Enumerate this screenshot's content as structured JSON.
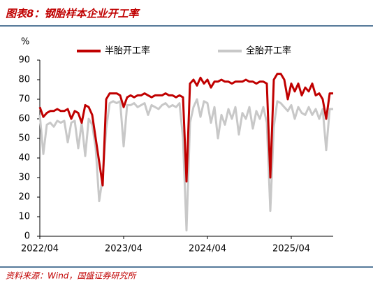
{
  "chart_data": {
    "type": "line",
    "title": "图表8：钢胎样本企业开工率",
    "y_label": "%",
    "source": "资料来源：Wind，国盛证券研究所",
    "categories": [
      "2022/04",
      null,
      null,
      null,
      null,
      null,
      null,
      null,
      null,
      null,
      null,
      null,
      null,
      null,
      null,
      null,
      null,
      null,
      null,
      null,
      null,
      null,
      null,
      null,
      "2023/04",
      null,
      null,
      null,
      null,
      null,
      null,
      null,
      null,
      null,
      null,
      null,
      null,
      null,
      null,
      null,
      null,
      null,
      null,
      null,
      null,
      null,
      null,
      null,
      "2024/04",
      null,
      null,
      null,
      null,
      null,
      null,
      null,
      null,
      null,
      null,
      null,
      null,
      null,
      null,
      null,
      null,
      null,
      null,
      null,
      null,
      null,
      null,
      null,
      "2025/04",
      null,
      null,
      null,
      null,
      null,
      null,
      null,
      null,
      null,
      null,
      null,
      null
    ],
    "series": [
      {
        "name": "半胎开工率",
        "color": "#c00000",
        "values": [
          66,
          61,
          63,
          64,
          64,
          65,
          64,
          64,
          65,
          60,
          64,
          63,
          58,
          67,
          66,
          62,
          50,
          38,
          26,
          70,
          73,
          73,
          73,
          72,
          66,
          71,
          72,
          71,
          72,
          72,
          73,
          72,
          71,
          72,
          72,
          72,
          73,
          72,
          72,
          71,
          72,
          71,
          28,
          78,
          80,
          77,
          81,
          78,
          80,
          76,
          79,
          79,
          80,
          79,
          79,
          78,
          79,
          79,
          79,
          80,
          79,
          79,
          78,
          79,
          79,
          78,
          30,
          80,
          83,
          83,
          80,
          70,
          78,
          74,
          78,
          72,
          76,
          74,
          78,
          72,
          73,
          70,
          60,
          73,
          73
        ]
      },
      {
        "name": "全胎开工率",
        "color": "#c8c8c8",
        "values": [
          62,
          42,
          57,
          58,
          56,
          59,
          58,
          59,
          48,
          58,
          59,
          45,
          58,
          41,
          60,
          57,
          45,
          18,
          30,
          55,
          68,
          69,
          68,
          69,
          46,
          67,
          67,
          68,
          66,
          67,
          68,
          62,
          67,
          66,
          65,
          67,
          68,
          66,
          67,
          66,
          68,
          50,
          3,
          58,
          66,
          70,
          61,
          69,
          68,
          58,
          66,
          50,
          62,
          57,
          65,
          60,
          66,
          52,
          63,
          60,
          66,
          55,
          64,
          60,
          66,
          58,
          13,
          56,
          69,
          68,
          66,
          64,
          67,
          60,
          66,
          63,
          62,
          66,
          62,
          65,
          60,
          65,
          44,
          65,
          65
        ]
      }
    ],
    "ylim": [
      0,
      90
    ],
    "yticks": [
      0,
      10,
      20,
      30,
      40,
      50,
      60,
      70,
      80,
      90
    ],
    "legend": "top"
  }
}
